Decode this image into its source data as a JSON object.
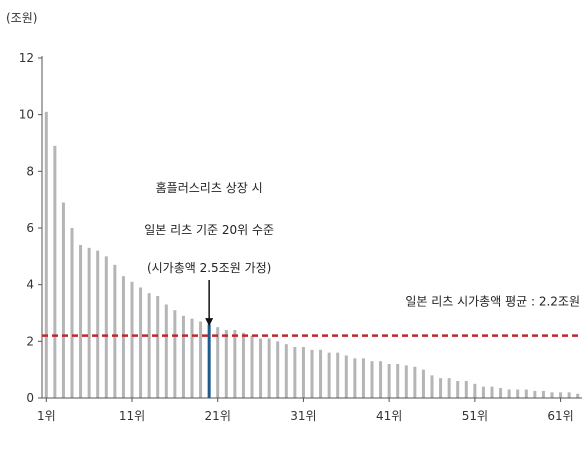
{
  "chart_data": {
    "type": "bar",
    "unit_label": "(조원)",
    "ylim": [
      0,
      12
    ],
    "y_ticks": [
      "0",
      "2",
      "4",
      "6",
      "8",
      "10",
      "12"
    ],
    "x_tick_labels": [
      "1위",
      "11위",
      "21위",
      "31위",
      "41위",
      "51위",
      "61위"
    ],
    "series": [
      {
        "values": [
          10.1,
          8.9,
          6.9,
          6.0,
          5.4,
          5.3,
          5.2,
          5.0,
          4.7,
          4.3,
          4.1,
          3.9,
          3.7,
          3.6,
          3.3,
          3.1,
          2.9,
          2.8,
          2.7,
          2.6,
          2.5,
          2.4,
          2.4,
          2.3,
          2.2,
          2.1,
          2.1,
          2.0,
          1.9,
          1.8,
          1.8,
          1.7,
          1.7,
          1.6,
          1.6,
          1.5,
          1.4,
          1.4,
          1.3,
          1.3,
          1.2,
          1.2,
          1.15,
          1.1,
          1.0,
          0.8,
          0.7,
          0.7,
          0.6,
          0.6,
          0.5,
          0.4,
          0.4,
          0.35,
          0.3,
          0.3,
          0.3,
          0.25,
          0.25,
          0.2,
          0.2,
          0.2,
          0.15
        ]
      }
    ],
    "highlight": {
      "rank": 20,
      "value": 2.5,
      "color": "#1f5a8c"
    },
    "average": {
      "value": 2.2,
      "color": "#c0272d",
      "label": "일본 리츠 시가총액 평균 : 2.2조원"
    },
    "annotation_lines": [
      "홈플러스리츠 상장 시",
      "일본 리츠 기준 20위 수준",
      "(시가총액 2.5조원 가정)"
    ],
    "bar_color": "#b5b5b5",
    "grid": false
  }
}
